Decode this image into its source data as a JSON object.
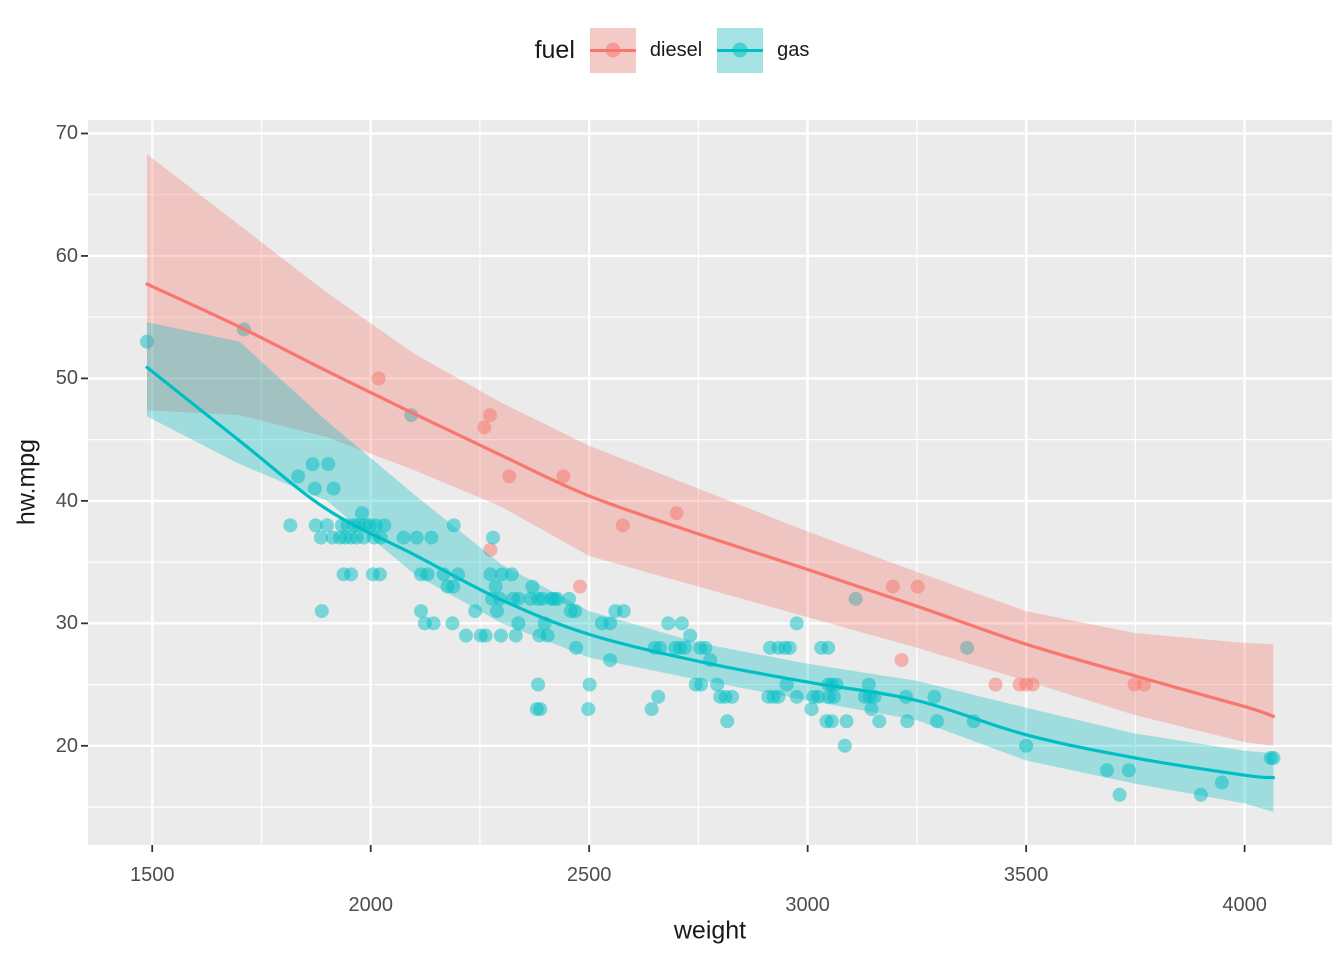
{
  "legend": {
    "title": "fuel",
    "entries": [
      {
        "label": "diesel",
        "color": "#F8766D",
        "key_bg": "#F4CAC7"
      },
      {
        "label": "gas",
        "color": "#00BFC4",
        "key_bg": "#A5E2E3"
      }
    ]
  },
  "chart_data": {
    "type": "scatter",
    "legend_title": "fuel",
    "xlabel": "weight",
    "ylabel": "hw.mpg",
    "panel_bg": "#EBEBEB",
    "grid_color": "#FFFFFF",
    "tick_mark_color": "#333333",
    "x_domain": [
      1353,
      4200
    ],
    "y_domain": [
      11.9,
      71.1
    ],
    "x_ticks": [
      {
        "label": "1500",
        "value": 1500,
        "row": 1
      },
      {
        "label": "2000",
        "value": 2000,
        "row": 2
      },
      {
        "label": "2500",
        "value": 2500,
        "row": 1
      },
      {
        "label": "3000",
        "value": 3000,
        "row": 2
      },
      {
        "label": "3500",
        "value": 3500,
        "row": 1
      },
      {
        "label": "4000",
        "value": 4000,
        "row": 2
      }
    ],
    "x_minor_ticks": [
      1750,
      2250,
      2750,
      3250,
      3750
    ],
    "y_ticks": [
      {
        "label": "70",
        "value": 70
      },
      {
        "label": "60",
        "value": 60
      },
      {
        "label": "50",
        "value": 50
      },
      {
        "label": "40",
        "value": 40
      },
      {
        "label": "30",
        "value": 30
      },
      {
        "label": "20",
        "value": 20
      }
    ],
    "y_minor_ticks": [
      15,
      25,
      35,
      45,
      55,
      65
    ],
    "point_radius": 7,
    "point_opacity": 0.5,
    "ribbon_opacity": 0.32,
    "line_width": 3.2,
    "series": [
      {
        "name": "diesel",
        "color": "#F8766D",
        "points": [
          [
            2018,
            50
          ],
          [
            2273,
            47
          ],
          [
            2260,
            46
          ],
          [
            2317,
            42
          ],
          [
            2441,
            42
          ],
          [
            2700,
            39
          ],
          [
            2577,
            38
          ],
          [
            2274,
            36
          ],
          [
            2479,
            33
          ],
          [
            3195,
            33
          ],
          [
            3252,
            33
          ],
          [
            3215,
            27
          ],
          [
            3430,
            25
          ],
          [
            3485,
            25
          ],
          [
            3500,
            25
          ],
          [
            3515,
            25
          ],
          [
            3748,
            25
          ],
          [
            3770,
            25
          ]
        ],
        "smooth": {
          "x": [
            1488,
            1700,
            1900,
            2100,
            2300,
            2500,
            2750,
            3000,
            3250,
            3500,
            3750,
            4000,
            4066
          ],
          "line": [
            57.7,
            54.2,
            50.6,
            47.1,
            43.7,
            40.4,
            37.3,
            34.4,
            31.4,
            28.3,
            25.7,
            23.2,
            22.4
          ],
          "upper": [
            68.3,
            62.5,
            57.0,
            52.0,
            48.0,
            44.5,
            41.0,
            37.5,
            34.2,
            31.0,
            29.2,
            28.4,
            28.3
          ],
          "lower": [
            47.4,
            47.0,
            45.2,
            42.5,
            39.5,
            35.5,
            33.0,
            30.5,
            28.0,
            25.3,
            22.5,
            20.3,
            20.0
          ]
        }
      },
      {
        "name": "gas",
        "color": "#00BFC4",
        "points": [
          [
            1488,
            53
          ],
          [
            1710,
            54
          ],
          [
            2093,
            47
          ],
          [
            1867,
            43
          ],
          [
            1903,
            43
          ],
          [
            1834,
            42
          ],
          [
            1872,
            41
          ],
          [
            1915,
            41
          ],
          [
            1980,
            39
          ],
          [
            1816,
            38
          ],
          [
            1874,
            38
          ],
          [
            1900,
            38
          ],
          [
            1934,
            38
          ],
          [
            1947,
            38
          ],
          [
            1962,
            38
          ],
          [
            1972,
            38
          ],
          [
            1987,
            38
          ],
          [
            1998,
            38
          ],
          [
            2012,
            38
          ],
          [
            2031,
            38
          ],
          [
            2190,
            38
          ],
          [
            1886,
            37
          ],
          [
            1913,
            37
          ],
          [
            1930,
            37
          ],
          [
            1942,
            37
          ],
          [
            1955,
            37
          ],
          [
            1968,
            37
          ],
          [
            1984,
            37
          ],
          [
            2007,
            37
          ],
          [
            2023,
            37
          ],
          [
            2075,
            37
          ],
          [
            2105,
            37
          ],
          [
            2139,
            37
          ],
          [
            2280,
            37
          ],
          [
            1938,
            34
          ],
          [
            1955,
            34
          ],
          [
            2005,
            34
          ],
          [
            2021,
            34
          ],
          [
            2115,
            34
          ],
          [
            2130,
            34
          ],
          [
            2167,
            34
          ],
          [
            2200,
            34
          ],
          [
            2274,
            34
          ],
          [
            2300,
            34
          ],
          [
            2323,
            34
          ],
          [
            2176,
            33
          ],
          [
            2189,
            33
          ],
          [
            2286,
            33
          ],
          [
            2370,
            33
          ],
          [
            2278,
            32
          ],
          [
            2296,
            32
          ],
          [
            2326,
            32
          ],
          [
            2338,
            32
          ],
          [
            2366,
            32
          ],
          [
            2383,
            32
          ],
          [
            2393,
            32
          ],
          [
            2413,
            32
          ],
          [
            2420,
            32
          ],
          [
            2427,
            32
          ],
          [
            2454,
            32
          ],
          [
            3110,
            32
          ],
          [
            1888,
            31
          ],
          [
            2115,
            31
          ],
          [
            2239,
            31
          ],
          [
            2289,
            31
          ],
          [
            2458,
            31
          ],
          [
            2468,
            31
          ],
          [
            2560,
            31
          ],
          [
            2579,
            31
          ],
          [
            2124,
            30
          ],
          [
            2144,
            30
          ],
          [
            2187,
            30
          ],
          [
            2338,
            30
          ],
          [
            2398,
            30
          ],
          [
            2529,
            30
          ],
          [
            2548,
            30
          ],
          [
            2681,
            30
          ],
          [
            2712,
            30
          ],
          [
            2975,
            30
          ],
          [
            2218,
            29
          ],
          [
            2252,
            29
          ],
          [
            2263,
            29
          ],
          [
            2298,
            29
          ],
          [
            2332,
            29
          ],
          [
            2386,
            29
          ],
          [
            2405,
            29
          ],
          [
            2731,
            29
          ],
          [
            2470,
            28
          ],
          [
            2650,
            28
          ],
          [
            2662,
            28
          ],
          [
            2697,
            28
          ],
          [
            2708,
            28
          ],
          [
            2719,
            28
          ],
          [
            2754,
            28
          ],
          [
            2766,
            28
          ],
          [
            2914,
            28
          ],
          [
            2933,
            28
          ],
          [
            2948,
            28
          ],
          [
            2959,
            28
          ],
          [
            3031,
            28
          ],
          [
            3047,
            28
          ],
          [
            3365,
            28
          ],
          [
            2548,
            27
          ],
          [
            2777,
            27
          ],
          [
            2383,
            25
          ],
          [
            2501,
            25
          ],
          [
            2744,
            25
          ],
          [
            2756,
            25
          ],
          [
            2793,
            25
          ],
          [
            2952,
            25
          ],
          [
            3047,
            25
          ],
          [
            3055,
            25
          ],
          [
            3066,
            25
          ],
          [
            3140,
            25
          ],
          [
            2658,
            24
          ],
          [
            2800,
            24
          ],
          [
            2812,
            24
          ],
          [
            2827,
            24
          ],
          [
            2910,
            24
          ],
          [
            2922,
            24
          ],
          [
            2933,
            24
          ],
          [
            2975,
            24
          ],
          [
            3013,
            24
          ],
          [
            3024,
            24
          ],
          [
            3049,
            24
          ],
          [
            3060,
            24
          ],
          [
            3131,
            24
          ],
          [
            3142,
            24
          ],
          [
            3153,
            24
          ],
          [
            3225,
            24
          ],
          [
            3290,
            24
          ],
          [
            2380,
            23
          ],
          [
            2388,
            23
          ],
          [
            2498,
            23
          ],
          [
            2643,
            23
          ],
          [
            3009,
            23
          ],
          [
            3146,
            23
          ],
          [
            2816,
            22
          ],
          [
            3043,
            22
          ],
          [
            3055,
            22
          ],
          [
            3089,
            22
          ],
          [
            3164,
            22
          ],
          [
            3228,
            22
          ],
          [
            3296,
            22
          ],
          [
            3380,
            22
          ],
          [
            3085,
            20
          ],
          [
            3500,
            20
          ],
          [
            4060,
            19
          ],
          [
            4066,
            19
          ],
          [
            3685,
            18
          ],
          [
            3735,
            18
          ],
          [
            3948,
            17
          ],
          [
            3714,
            16
          ],
          [
            3900,
            16
          ]
        ],
        "smooth": {
          "x": [
            1488,
            1700,
            1900,
            2100,
            2300,
            2500,
            2750,
            3000,
            3250,
            3500,
            3750,
            4000,
            4066
          ],
          "line": [
            50.9,
            44.9,
            39.3,
            35.6,
            31.9,
            29.1,
            26.9,
            25.2,
            23.7,
            20.9,
            19.0,
            17.6,
            17.4
          ],
          "upper": [
            54.6,
            53.0,
            46.5,
            40.5,
            34.8,
            31.0,
            28.4,
            26.7,
            25.3,
            23.1,
            21.0,
            19.6,
            19.4
          ],
          "lower": [
            46.9,
            43.0,
            40.0,
            34.0,
            30.0,
            27.2,
            25.4,
            23.7,
            22.1,
            18.8,
            16.9,
            15.3,
            14.6
          ]
        }
      }
    ]
  }
}
